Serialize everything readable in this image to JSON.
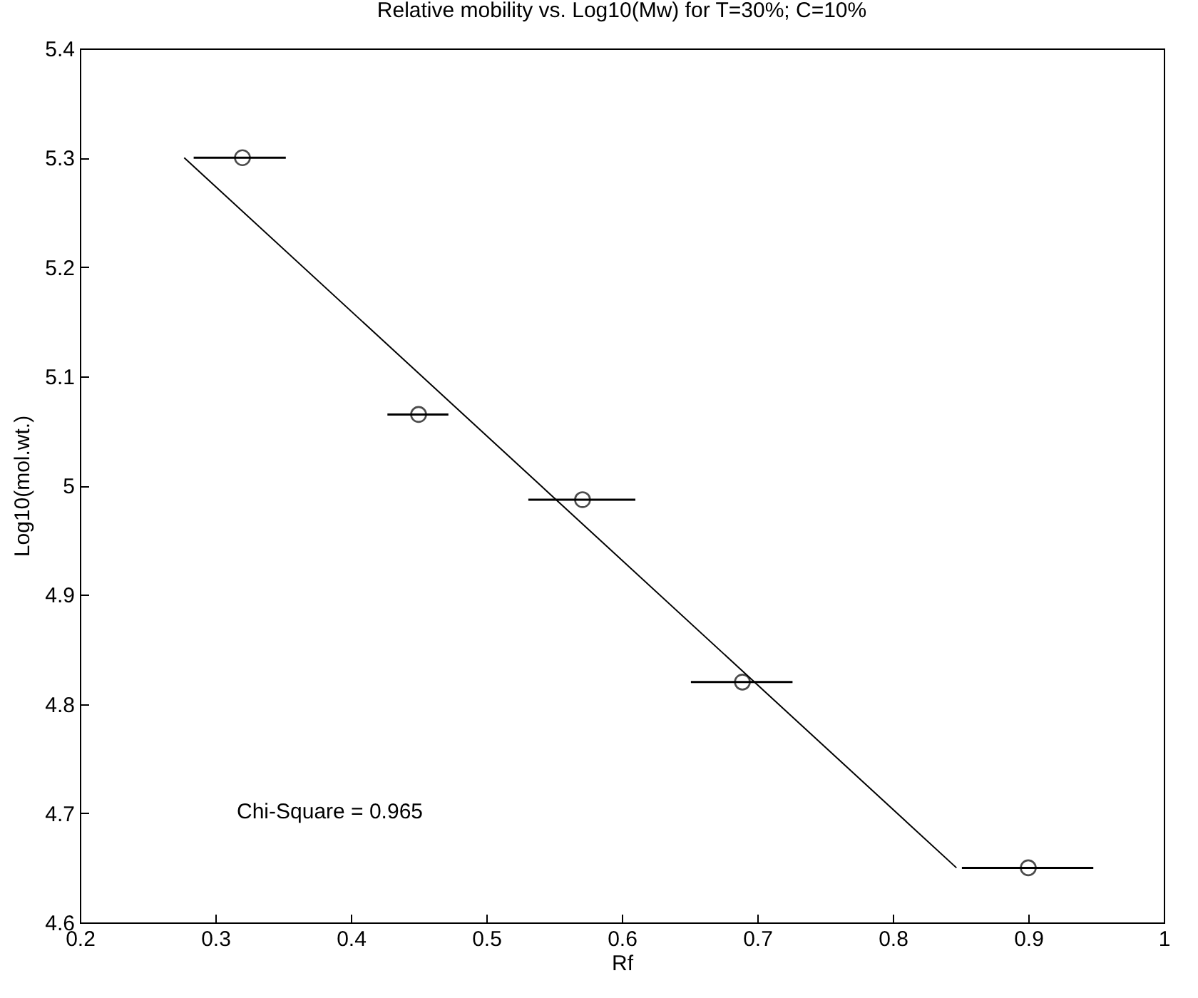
{
  "chart_data": {
    "type": "scatter",
    "title": "Relative mobility vs. Log10(Mw) for T=30%; C=10%",
    "xlabel": "Rf",
    "ylabel": "Log10(mol.wt.)",
    "xlim": [
      0.2,
      1
    ],
    "xticks": [
      0.2,
      0.3,
      0.4,
      0.5,
      0.6,
      0.7,
      0.8,
      0.9,
      1
    ],
    "ylim": [
      4.6,
      5.4
    ],
    "yticks": [
      4.6,
      4.7,
      4.8,
      4.9,
      5,
      5.1,
      5.2,
      5.3,
      5.4
    ],
    "grid": false,
    "annotations": [
      "Chi-Square = 0.965"
    ],
    "series": [
      {
        "color": "#000000",
        "marker": "circle",
        "x": [
          0.32,
          0.45,
          0.571,
          0.689,
          0.9
        ],
        "values": [
          5.3,
          5.065,
          4.987,
          4.82,
          4.65
        ],
        "xerrors": [
          [
            0.284,
            0.352
          ],
          [
            0.427,
            0.472
          ],
          [
            0.531,
            0.61
          ],
          [
            0.651,
            0.726
          ],
          [
            0.851,
            0.948
          ]
        ]
      },
      {
        "type": "line",
        "color": "#000000",
        "line_style": "solid",
        "marker": "none",
        "x": [
          0.277,
          0.847
        ],
        "values": [
          5.3,
          4.65
        ]
      }
    ]
  }
}
